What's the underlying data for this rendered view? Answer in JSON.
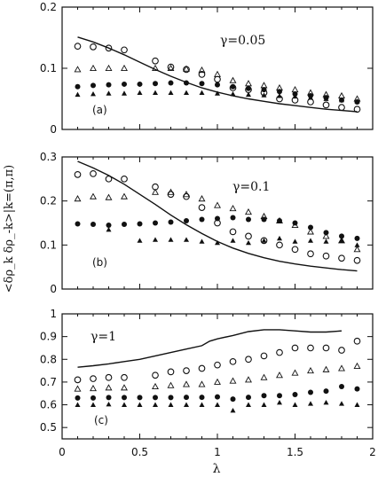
{
  "figure": {
    "ylabel": "<δρ_k δρ_-k>|k=(π,π)",
    "xlabel": "λ"
  },
  "chart_data": [
    {
      "type": "scatter",
      "panel_label": "(a)",
      "annotation": "γ=0.05",
      "xlim": [
        0,
        2
      ],
      "ylim": [
        0,
        0.2
      ],
      "yticks": [
        "0",
        "0.1",
        "0.2"
      ],
      "series": [
        {
          "marker": "line",
          "x": [
            0.1,
            0.2,
            0.3,
            0.4,
            0.5,
            0.6,
            0.7,
            0.8,
            0.9,
            1.0,
            1.1,
            1.2,
            1.3,
            1.4,
            1.5,
            1.6,
            1.7,
            1.8,
            1.9
          ],
          "y": [
            0.151,
            0.143,
            0.133,
            0.122,
            0.11,
            0.098,
            0.087,
            0.077,
            0.068,
            0.061,
            0.055,
            0.05,
            0.046,
            0.042,
            0.039,
            0.036,
            0.033,
            0.031,
            0.029
          ]
        },
        {
          "marker": "open-circle",
          "x": [
            0.1,
            0.2,
            0.3,
            0.4,
            0.6,
            0.7,
            0.8,
            0.9,
            1.0,
            1.1,
            1.2,
            1.3,
            1.4,
            1.5,
            1.6,
            1.7,
            1.8,
            1.9
          ],
          "y": [
            0.136,
            0.135,
            0.133,
            0.13,
            0.112,
            0.102,
            0.098,
            0.09,
            0.082,
            0.068,
            0.065,
            0.06,
            0.05,
            0.048,
            0.045,
            0.04,
            0.036,
            0.033
          ]
        },
        {
          "marker": "open-triangle",
          "x": [
            0.1,
            0.2,
            0.3,
            0.4,
            0.6,
            0.7,
            0.8,
            0.9,
            1.0,
            1.1,
            1.2,
            1.3,
            1.4,
            1.5,
            1.6,
            1.7,
            1.8,
            1.9
          ],
          "y": [
            0.098,
            0.1,
            0.1,
            0.1,
            0.1,
            0.1,
            0.099,
            0.097,
            0.09,
            0.08,
            0.075,
            0.072,
            0.068,
            0.065,
            0.06,
            0.057,
            0.055,
            0.05
          ]
        },
        {
          "marker": "filled-circle",
          "x": [
            0.1,
            0.2,
            0.3,
            0.4,
            0.5,
            0.6,
            0.7,
            0.8,
            0.9,
            1.0,
            1.1,
            1.2,
            1.3,
            1.4,
            1.5,
            1.6,
            1.7,
            1.8,
            1.9
          ],
          "y": [
            0.07,
            0.072,
            0.073,
            0.074,
            0.074,
            0.075,
            0.076,
            0.076,
            0.075,
            0.073,
            0.07,
            0.067,
            0.065,
            0.062,
            0.058,
            0.055,
            0.052,
            0.048,
            0.045
          ]
        },
        {
          "marker": "filled-triangle",
          "x": [
            0.1,
            0.2,
            0.3,
            0.4,
            0.5,
            0.6,
            0.7,
            0.8,
            0.9,
            1.0,
            1.1,
            1.2,
            1.3,
            1.4,
            1.5,
            1.6,
            1.7,
            1.8,
            1.9
          ],
          "y": [
            0.057,
            0.058,
            0.059,
            0.059,
            0.06,
            0.06,
            0.06,
            0.06,
            0.06,
            0.059,
            0.058,
            0.057,
            0.056,
            0.055,
            0.054,
            0.052,
            0.05,
            0.048,
            0.046
          ]
        }
      ]
    },
    {
      "type": "scatter",
      "panel_label": "(b)",
      "annotation": "γ=0.1",
      "xlim": [
        0,
        2
      ],
      "ylim": [
        0,
        0.3
      ],
      "yticks": [
        "0",
        "0.1",
        "0.2",
        "0.3"
      ],
      "series": [
        {
          "marker": "line",
          "x": [
            0.1,
            0.2,
            0.3,
            0.4,
            0.5,
            0.6,
            0.7,
            0.8,
            0.9,
            1.0,
            1.1,
            1.2,
            1.3,
            1.4,
            1.5,
            1.6,
            1.7,
            1.8,
            1.9
          ],
          "y": [
            0.29,
            0.275,
            0.258,
            0.238,
            0.215,
            0.192,
            0.168,
            0.146,
            0.126,
            0.108,
            0.093,
            0.081,
            0.071,
            0.063,
            0.057,
            0.052,
            0.048,
            0.044,
            0.041
          ]
        },
        {
          "marker": "open-circle",
          "x": [
            0.1,
            0.2,
            0.3,
            0.4,
            0.6,
            0.7,
            0.8,
            0.9,
            1.0,
            1.1,
            1.2,
            1.3,
            1.4,
            1.5,
            1.6,
            1.7,
            1.8,
            1.9
          ],
          "y": [
            0.26,
            0.262,
            0.25,
            0.25,
            0.232,
            0.215,
            0.21,
            0.185,
            0.15,
            0.13,
            0.12,
            0.11,
            0.1,
            0.09,
            0.08,
            0.075,
            0.07,
            0.065
          ]
        },
        {
          "marker": "open-triangle",
          "x": [
            0.1,
            0.2,
            0.3,
            0.4,
            0.6,
            0.7,
            0.8,
            0.9,
            1.0,
            1.1,
            1.2,
            1.3,
            1.4,
            1.5,
            1.6,
            1.7,
            1.8,
            1.9
          ],
          "y": [
            0.205,
            0.21,
            0.208,
            0.21,
            0.22,
            0.22,
            0.215,
            0.205,
            0.19,
            0.183,
            0.175,
            0.165,
            0.155,
            0.145,
            0.13,
            0.12,
            0.11,
            0.09
          ]
        },
        {
          "marker": "filled-circle",
          "x": [
            0.1,
            0.2,
            0.3,
            0.4,
            0.5,
            0.6,
            0.7,
            0.8,
            0.9,
            1.0,
            1.1,
            1.2,
            1.3,
            1.4,
            1.5,
            1.6,
            1.7,
            1.8,
            1.9
          ],
          "y": [
            0.148,
            0.147,
            0.145,
            0.147,
            0.148,
            0.15,
            0.152,
            0.155,
            0.158,
            0.16,
            0.162,
            0.158,
            0.158,
            0.155,
            0.15,
            0.14,
            0.128,
            0.12,
            0.115
          ]
        },
        {
          "marker": "filled-triangle",
          "x": [
            0.3,
            0.5,
            0.6,
            0.7,
            0.8,
            0.9,
            1.0,
            1.1,
            1.2,
            1.3,
            1.4,
            1.5,
            1.6,
            1.7,
            1.8,
            1.9
          ],
          "y": [
            0.135,
            0.11,
            0.112,
            0.112,
            0.112,
            0.108,
            0.105,
            0.11,
            0.105,
            0.11,
            0.115,
            0.108,
            0.11,
            0.108,
            0.11,
            0.1
          ]
        }
      ]
    },
    {
      "type": "scatter",
      "panel_label": "(c)",
      "annotation": "γ=1",
      "xlim": [
        0,
        2
      ],
      "ylim": [
        0.45,
        1
      ],
      "yticks": [
        "0.5",
        "0.6",
        "0.7",
        "0.8",
        "0.9",
        "1"
      ],
      "xticks": [
        "0",
        "0.5",
        "1",
        "1.5",
        "2"
      ],
      "series": [
        {
          "marker": "line",
          "x": [
            0.1,
            0.2,
            0.3,
            0.4,
            0.5,
            0.6,
            0.7,
            0.8,
            0.9,
            0.95,
            1.0,
            1.1,
            1.2,
            1.3,
            1.4,
            1.5,
            1.6,
            1.7,
            1.8
          ],
          "y": [
            0.765,
            0.772,
            0.78,
            0.79,
            0.8,
            0.815,
            0.83,
            0.845,
            0.86,
            0.88,
            0.89,
            0.905,
            0.922,
            0.93,
            0.93,
            0.925,
            0.92,
            0.92,
            0.925
          ]
        },
        {
          "marker": "open-circle",
          "x": [
            0.1,
            0.2,
            0.3,
            0.4,
            0.6,
            0.7,
            0.8,
            0.9,
            1.0,
            1.1,
            1.2,
            1.3,
            1.4,
            1.5,
            1.6,
            1.7,
            1.8,
            1.9
          ],
          "y": [
            0.71,
            0.715,
            0.72,
            0.72,
            0.73,
            0.745,
            0.75,
            0.76,
            0.775,
            0.79,
            0.8,
            0.815,
            0.83,
            0.85,
            0.85,
            0.85,
            0.84,
            0.88
          ]
        },
        {
          "marker": "open-triangle",
          "x": [
            0.1,
            0.2,
            0.3,
            0.4,
            0.6,
            0.7,
            0.8,
            0.9,
            1.0,
            1.1,
            1.2,
            1.3,
            1.4,
            1.5,
            1.6,
            1.7,
            1.8,
            1.9
          ],
          "y": [
            0.67,
            0.672,
            0.675,
            0.675,
            0.68,
            0.685,
            0.69,
            0.69,
            0.7,
            0.705,
            0.71,
            0.72,
            0.73,
            0.74,
            0.75,
            0.755,
            0.76,
            0.77
          ]
        },
        {
          "marker": "filled-circle",
          "x": [
            0.1,
            0.2,
            0.3,
            0.4,
            0.5,
            0.6,
            0.7,
            0.8,
            0.9,
            1.0,
            1.1,
            1.2,
            1.3,
            1.4,
            1.5,
            1.6,
            1.7,
            1.8,
            1.9
          ],
          "y": [
            0.63,
            0.63,
            0.632,
            0.632,
            0.632,
            0.632,
            0.632,
            0.633,
            0.633,
            0.635,
            0.625,
            0.633,
            0.64,
            0.64,
            0.645,
            0.655,
            0.66,
            0.68,
            0.67
          ]
        },
        {
          "marker": "filled-triangle",
          "x": [
            0.1,
            0.2,
            0.3,
            0.4,
            0.5,
            0.6,
            0.7,
            0.8,
            0.9,
            1.0,
            1.1,
            1.2,
            1.3,
            1.4,
            1.5,
            1.6,
            1.7,
            1.8,
            1.9
          ],
          "y": [
            0.6,
            0.6,
            0.602,
            0.6,
            0.6,
            0.6,
            0.6,
            0.6,
            0.6,
            0.6,
            0.575,
            0.6,
            0.6,
            0.61,
            0.6,
            0.605,
            0.61,
            0.605,
            0.6
          ]
        }
      ]
    }
  ]
}
